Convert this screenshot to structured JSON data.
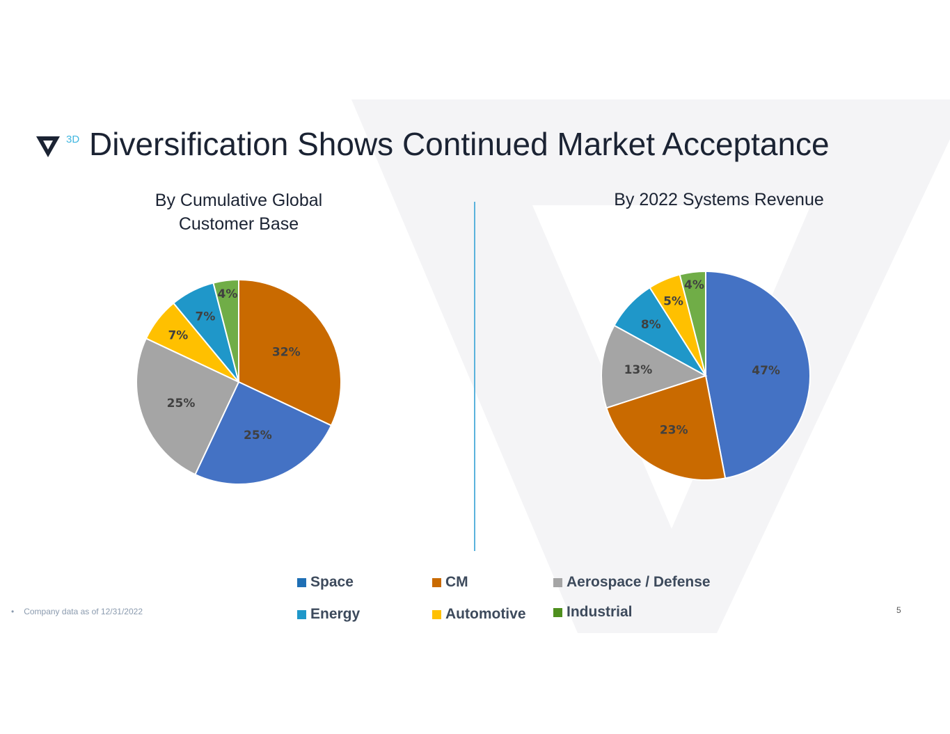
{
  "title": "Diversification Shows Continued Market Acceptance",
  "logo_text": "3D",
  "footnote": "Company data as of 12/31/2022",
  "page_number": "5",
  "colors": {
    "Space": "#4472C4",
    "CM": "#C96A00",
    "Aerospace / Defense": "#A5A5A5",
    "Automotive": "#FFC000",
    "Energy": "#1F97C9",
    "Industrial": "#70AD47"
  },
  "legend": [
    {
      "label": "Space",
      "color": "#1F6FB5"
    },
    {
      "label": "CM",
      "color": "#C96A00"
    },
    {
      "label": "Aerospace / Defense",
      "color": "#A5A5A5"
    },
    {
      "label": "Energy",
      "color": "#1F97C9"
    },
    {
      "label": "Automotive",
      "color": "#FFC000"
    },
    {
      "label": "Industrial",
      "color": "#4E8F1E"
    }
  ],
  "chart_data": [
    {
      "type": "pie",
      "title": "By Cumulative Global Customer Base",
      "title_lines": [
        "By Cumulative Global",
        "Customer Base"
      ],
      "categories": [
        "CM",
        "Space",
        "Aerospace / Defense",
        "Automotive",
        "Energy",
        "Industrial"
      ],
      "values": [
        32,
        25,
        25,
        7,
        7,
        4
      ],
      "labels": [
        "32%",
        "25%",
        "25%",
        "7%",
        "7%",
        "4%"
      ]
    },
    {
      "type": "pie",
      "title": "By 2022 Systems Revenue",
      "title_lines": [
        "By 2022 Systems Revenue"
      ],
      "categories": [
        "Space",
        "CM",
        "Aerospace / Defense",
        "Energy",
        "Automotive",
        "Industrial"
      ],
      "values": [
        47,
        23,
        13,
        8,
        5,
        4
      ],
      "labels": [
        "47%",
        "23%",
        "13%",
        "8%",
        "5%",
        "4%"
      ]
    }
  ]
}
